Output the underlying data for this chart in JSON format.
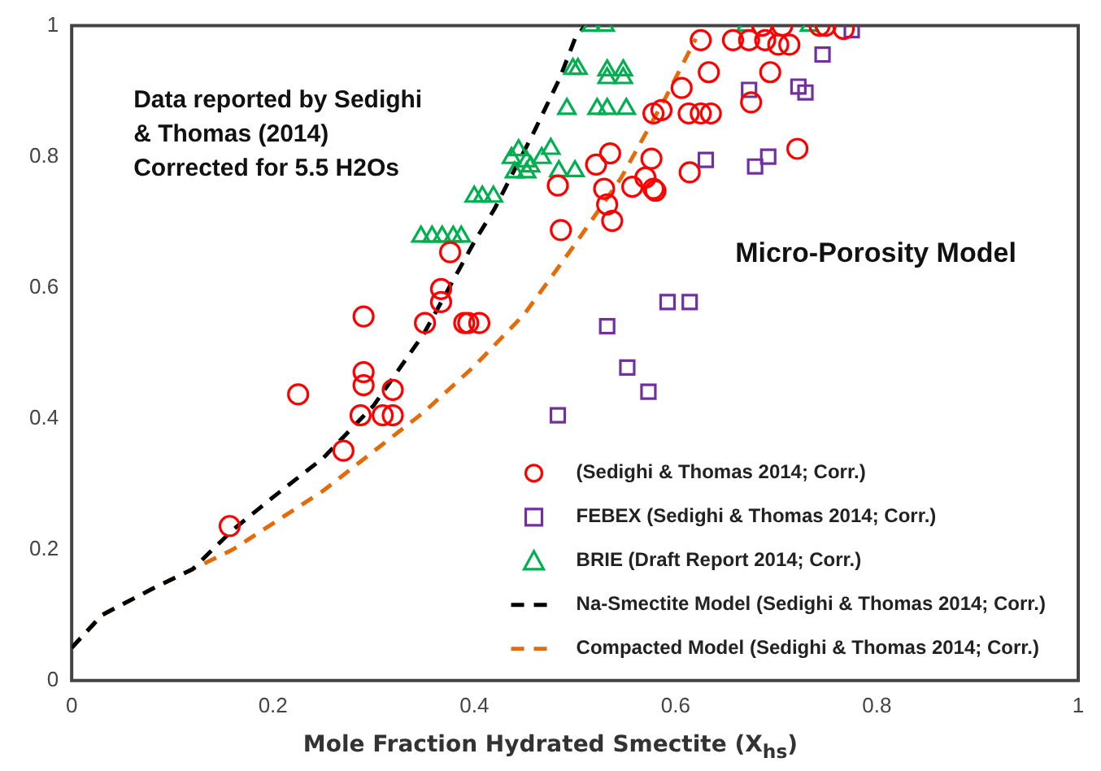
{
  "chart_data": {
    "type": "scatter",
    "xlabel": "Mole Fraction Hydrated  Smectite (X$_{hs}$)",
    "xlim": [
      0,
      1
    ],
    "xticks": [
      0,
      0.2,
      0.4,
      0.6,
      0.8,
      1
    ],
    "ylim": [
      0,
      1
    ],
    "yticks": [
      0,
      0.2,
      0.4,
      0.6,
      0.8,
      1
    ],
    "grid": false,
    "legend": "bottom right",
    "annotations": [
      "Data reported by Sedighi\n& Thomas (2014)\nCorrected for 5.5 H2Os",
      "Micro-Porosity Model"
    ],
    "series": [
      {
        "name": "(Sedighi & Thomas 2014; Corr.)",
        "type": "scatter",
        "marker": "circle",
        "color": "#ff0000",
        "x": [
          0.157,
          0.225,
          0.27,
          0.29,
          0.29,
          0.29,
          0.287,
          0.309,
          0.319,
          0.319,
          0.351,
          0.367,
          0.367,
          0.376,
          0.39,
          0.394,
          0.405,
          0.483,
          0.486,
          0.521,
          0.535,
          0.529,
          0.532,
          0.537,
          0.557,
          0.57,
          0.576,
          0.578,
          0.58,
          0.614,
          0.578,
          0.586,
          0.606,
          0.613,
          0.625,
          0.635,
          0.633,
          0.625,
          0.657,
          0.673,
          0.686,
          0.689,
          0.706,
          0.702,
          0.713,
          0.694,
          0.675,
          0.721,
          0.743,
          0.749,
          0.767
        ],
        "values": [
          0.236,
          0.437,
          0.351,
          0.556,
          0.471,
          0.451,
          0.405,
          0.405,
          0.405,
          0.444,
          0.546,
          0.598,
          0.578,
          0.654,
          0.546,
          0.546,
          0.546,
          0.756,
          0.688,
          0.788,
          0.805,
          0.751,
          0.727,
          0.702,
          0.754,
          0.768,
          0.797,
          0.751,
          0.748,
          0.776,
          0.866,
          0.871,
          0.905,
          0.866,
          0.866,
          0.866,
          0.929,
          0.978,
          0.978,
          0.978,
          1.0,
          0.978,
          1.0,
          0.971,
          0.971,
          0.929,
          0.883,
          0.812,
          1.0,
          1.0,
          0.995
        ]
      },
      {
        "name": "FEBEX (Sedighi & Thomas 2014; Corr.)",
        "type": "scatter",
        "marker": "square",
        "color": "#7030a0",
        "x": [
          0.483,
          0.532,
          0.552,
          0.573,
          0.592,
          0.614,
          0.63,
          0.679,
          0.692,
          0.673,
          0.722,
          0.729,
          0.746,
          0.775
        ],
        "values": [
          0.405,
          0.541,
          0.478,
          0.441,
          0.578,
          0.578,
          0.795,
          0.785,
          0.8,
          0.902,
          0.907,
          0.898,
          0.956,
          0.993
        ]
      },
      {
        "name": "BRIE (Draft Report 2014; Corr.)",
        "type": "scatter",
        "marker": "triangle",
        "color": "#00b050",
        "x": [
          0.347,
          0.358,
          0.368,
          0.379,
          0.387,
          0.4,
          0.408,
          0.419,
          0.437,
          0.444,
          0.452,
          0.44,
          0.452,
          0.456,
          0.467,
          0.476,
          0.484,
          0.5,
          0.492,
          0.522,
          0.532,
          0.551,
          0.498,
          0.503,
          0.532,
          0.548,
          0.548,
          0.532,
          0.516,
          0.53,
          0.67,
          0.733
        ],
        "values": [
          0.678,
          0.678,
          0.678,
          0.678,
          0.678,
          0.739,
          0.739,
          0.739,
          0.798,
          0.81,
          0.793,
          0.776,
          0.776,
          0.785,
          0.798,
          0.812,
          0.778,
          0.778,
          0.873,
          0.873,
          0.873,
          0.873,
          0.934,
          0.934,
          0.932,
          0.932,
          0.92,
          0.92,
          1.0,
          1.0,
          1.0,
          1.0
        ]
      },
      {
        "name": "Na-Smectite Model (Sedighi & Thomas 2014; Corr.)",
        "type": "line",
        "marker": "none",
        "line_style": "dashed",
        "color": "#000000",
        "x": [
          0,
          0.03,
          0.08,
          0.12,
          0.16,
          0.2,
          0.25,
          0.3,
          0.35,
          0.4,
          0.42,
          0.46,
          0.485,
          0.5,
          0.51
        ],
        "values": [
          0.05,
          0.1,
          0.14,
          0.17,
          0.23,
          0.28,
          0.34,
          0.42,
          0.53,
          0.67,
          0.72,
          0.84,
          0.92,
          0.98,
          1
        ]
      },
      {
        "name": "Compacted Model (Sedighi & Thomas 2014; Corr.)",
        "type": "line",
        "marker": "none",
        "line_style": "dashed",
        "color": "#e36c09",
        "x": [
          0,
          0.03,
          0.08,
          0.16,
          0.2,
          0.25,
          0.3,
          0.35,
          0.4,
          0.45,
          0.5,
          0.546,
          0.59,
          0.62
        ],
        "values": [
          0.05,
          0.1,
          0.14,
          0.2,
          0.24,
          0.29,
          0.35,
          0.41,
          0.48,
          0.56,
          0.666,
          0.768,
          0.89,
          0.98
        ]
      }
    ]
  }
}
